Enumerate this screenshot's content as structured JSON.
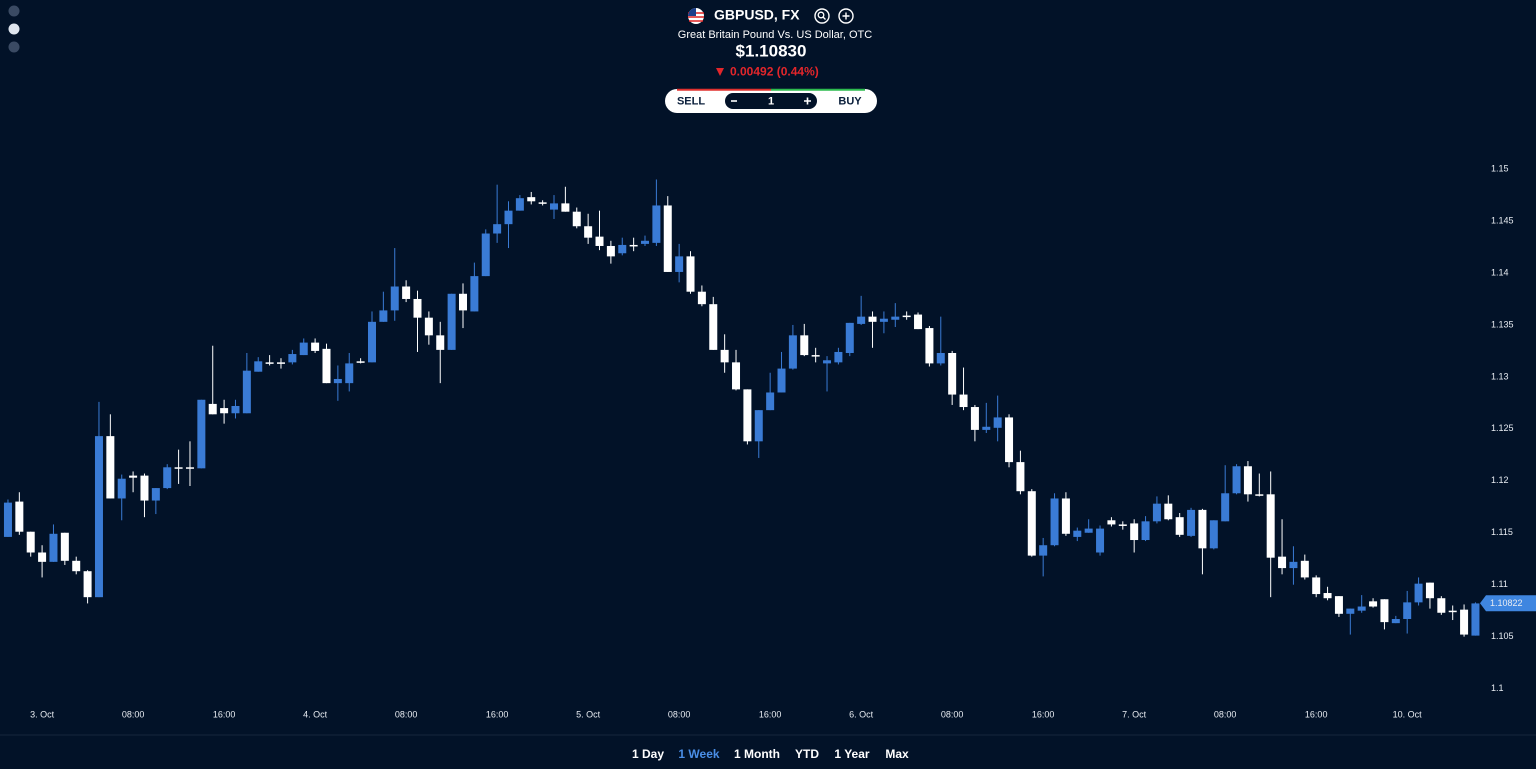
{
  "header": {
    "symbol": "GBPUSD, FX",
    "name": "Great Britain Pound Vs. US Dollar, OTC",
    "price": "$1.10830",
    "change": "0.00492 (0.44%)"
  },
  "trade": {
    "sell": "SELL",
    "quantity": 1,
    "buy": "BUY"
  },
  "ranges": [
    "1 Day",
    "1 Week",
    "1 Month",
    "YTD",
    "1 Year",
    "Max"
  ],
  "active_range": 1,
  "chart_data": {
    "type": "candlestick",
    "up_color": "#3a7bd5",
    "down_color": "#ffffff",
    "xlim": [
      -0.7,
      129.4
    ],
    "xticks": [
      {
        "value": 3,
        "label": "3. Oct"
      },
      {
        "value": 11,
        "label": "08:00"
      },
      {
        "value": 19,
        "label": "16:00"
      },
      {
        "value": 27,
        "label": "4. Oct"
      },
      {
        "value": 35,
        "label": "08:00"
      },
      {
        "value": 43,
        "label": "16:00"
      },
      {
        "value": 51,
        "label": "5. Oct"
      },
      {
        "value": 59,
        "label": "08:00"
      },
      {
        "value": 67,
        "label": "16:00"
      },
      {
        "value": 75,
        "label": "6. Oct"
      },
      {
        "value": 83,
        "label": "08:00"
      },
      {
        "value": 91,
        "label": "16:00"
      },
      {
        "value": 99,
        "label": "7. Oct"
      },
      {
        "value": 107,
        "label": "08:00"
      },
      {
        "value": 115,
        "label": "16:00"
      },
      {
        "value": 123,
        "label": "10. Oct"
      }
    ],
    "ylim": [
      1.099,
      1.1528
    ],
    "yticks": [
      1.1,
      1.105,
      1.11,
      1.115,
      1.12,
      1.125,
      1.13,
      1.135,
      1.14,
      1.145,
      1.15
    ],
    "last_price": 1.10822,
    "open": [
      1.1146,
      1.118,
      1.1151,
      1.1131,
      1.1122,
      1.115,
      1.1123,
      1.1113,
      1.1088,
      1.1243,
      1.1183,
      1.1205,
      1.1205,
      1.1181,
      1.1193,
      1.1213,
      1.1213,
      1.1212,
      1.1274,
      1.127,
      1.1265,
      1.1265,
      1.1305,
      1.1314,
      1.1314,
      1.1314,
      1.1321,
      1.1333,
      1.1327,
      1.1294,
      1.1294,
      1.1315,
      1.1314,
      1.1353,
      1.1364,
      1.1387,
      1.1375,
      1.1357,
      1.134,
      1.1326,
      1.138,
      1.1363,
      1.1397,
      1.1438,
      1.1447,
      1.146,
      1.1473,
      1.1468,
      1.1461,
      1.1467,
      1.1459,
      1.1445,
      1.1435,
      1.1426,
      1.1419,
      1.1427,
      1.1428,
      1.1429,
      1.1465,
      1.1401,
      1.1416,
      1.1382,
      1.137,
      1.1326,
      1.1314,
      1.1288,
      1.1238,
      1.1268,
      1.1285,
      1.1308,
      1.134,
      1.1321,
      1.1313,
      1.1314,
      1.1323,
      1.1351,
      1.1358,
      1.1353,
      1.1355,
      1.1359,
      1.136,
      1.1347,
      1.1313,
      1.1323,
      1.1283,
      1.1271,
      1.1249,
      1.1251,
      1.1261,
      1.1218,
      1.119,
      1.1128,
      1.1138,
      1.1183,
      1.1146,
      1.115,
      1.1131,
      1.1162,
      1.1158,
      1.1159,
      1.1143,
      1.1161,
      1.1178,
      1.1165,
      1.1147,
      1.1172,
      1.1135,
      1.1161,
      1.1188,
      1.1214,
      1.1187,
      1.1187,
      1.1127,
      1.1116,
      1.1123,
      1.1107,
      1.1092,
      1.1089,
      1.1072,
      1.1075,
      1.1084,
      1.1086,
      1.1063,
      1.1067,
      1.1083,
      1.1102,
      1.1087,
      1.1075,
      1.1076,
      1.1051
    ],
    "high": [
      1.1182,
      1.1189,
      1.1151,
      1.1138,
      1.1158,
      1.115,
      1.1127,
      1.1114,
      1.1276,
      1.1264,
      1.1206,
      1.1209,
      1.1207,
      1.1193,
      1.1216,
      1.123,
      1.1238,
      1.1278,
      1.133,
      1.1278,
      1.1278,
      1.1323,
      1.1319,
      1.1321,
      1.1318,
      1.1326,
      1.1337,
      1.1337,
      1.1332,
      1.1311,
      1.1323,
      1.1318,
      1.1363,
      1.1382,
      1.1424,
      1.1393,
      1.1383,
      1.1363,
      1.1353,
      1.138,
      1.139,
      1.141,
      1.1442,
      1.1485,
      1.1469,
      1.1475,
      1.1478,
      1.147,
      1.1475,
      1.1483,
      1.1463,
      1.1457,
      1.146,
      1.1431,
      1.1434,
      1.1434,
      1.1436,
      1.149,
      1.1474,
      1.1428,
      1.1421,
      1.1388,
      1.1377,
      1.1341,
      1.1326,
      1.1288,
      1.1268,
      1.1304,
      1.1324,
      1.135,
      1.1351,
      1.1328,
      1.132,
      1.1328,
      1.1352,
      1.1378,
      1.1363,
      1.1363,
      1.1371,
      1.1363,
      1.1362,
      1.1349,
      1.1358,
      1.1325,
      1.1309,
      1.1273,
      1.1275,
      1.1282,
      1.1264,
      1.1229,
      1.1192,
      1.1145,
      1.1188,
      1.1189,
      1.1155,
      1.1163,
      1.1157,
      1.1165,
      1.1161,
      1.1163,
      1.1166,
      1.1185,
      1.1186,
      1.1169,
      1.1174,
      1.1173,
      1.1162,
      1.1215,
      1.1216,
      1.1219,
      1.1207,
      1.1209,
      1.1163,
      1.1137,
      1.1129,
      1.1109,
      1.1098,
      1.1089,
      1.1077,
      1.109,
      1.1087,
      1.1086,
      1.107,
      1.1094,
      1.1107,
      1.1102,
      1.1089,
      1.108,
      1.1081,
      1.1083
    ],
    "low": [
      1.1146,
      1.1148,
      1.1127,
      1.1107,
      1.1122,
      1.1119,
      1.111,
      1.1082,
      1.1088,
      1.1183,
      1.1162,
      1.1189,
      1.1165,
      1.1168,
      1.1192,
      1.1197,
      1.1195,
      1.1212,
      1.1264,
      1.1255,
      1.126,
      1.1265,
      1.1305,
      1.1311,
      1.1308,
      1.1312,
      1.1321,
      1.1323,
      1.1294,
      1.1277,
      1.1286,
      1.1313,
      1.1314,
      1.1353,
      1.1354,
      1.1372,
      1.1324,
      1.1331,
      1.1294,
      1.1326,
      1.1347,
      1.1363,
      1.1397,
      1.1429,
      1.1424,
      1.146,
      1.1466,
      1.1465,
      1.1452,
      1.1459,
      1.1443,
      1.1428,
      1.1422,
      1.1409,
      1.1417,
      1.1421,
      1.1426,
      1.1426,
      1.1401,
      1.1391,
      1.138,
      1.1368,
      1.1326,
      1.1304,
      1.1287,
      1.1235,
      1.1222,
      1.1268,
      1.1285,
      1.1307,
      1.132,
      1.1314,
      1.1286,
      1.1312,
      1.132,
      1.135,
      1.1328,
      1.1342,
      1.1348,
      1.1355,
      1.1346,
      1.131,
      1.1311,
      1.1273,
      1.1268,
      1.1238,
      1.1246,
      1.1238,
      1.1213,
      1.1187,
      1.1127,
      1.1108,
      1.1137,
      1.1147,
      1.1142,
      1.115,
      1.1128,
      1.1156,
      1.1153,
      1.1131,
      1.1142,
      1.1159,
      1.1162,
      1.1146,
      1.1146,
      1.111,
      1.1134,
      1.1161,
      1.1187,
      1.118,
      1.1185,
      1.1088,
      1.111,
      1.11,
      1.1105,
      1.1088,
      1.1085,
      1.1069,
      1.1052,
      1.1073,
      1.1078,
      1.1057,
      1.1063,
      1.1053,
      1.108,
      1.1077,
      1.1071,
      1.1066,
      1.105,
      1.1051
    ],
    "close": [
      1.1179,
      1.1151,
      1.1131,
      1.1122,
      1.1149,
      1.1123,
      1.1113,
      1.1088,
      1.1243,
      1.1183,
      1.1202,
      1.1203,
      1.1181,
      1.1193,
      1.1213,
      1.1212,
      1.1212,
      1.1278,
      1.1264,
      1.1265,
      1.1272,
      1.1306,
      1.1315,
      1.1313,
      1.1313,
      1.1322,
      1.1333,
      1.1325,
      1.1294,
      1.1298,
      1.1313,
      1.1314,
      1.1353,
      1.1364,
      1.1387,
      1.1375,
      1.1357,
      1.134,
      1.1326,
      1.138,
      1.1364,
      1.1397,
      1.1438,
      1.1447,
      1.146,
      1.1472,
      1.1469,
      1.1467,
      1.1467,
      1.1459,
      1.1445,
      1.1434,
      1.1426,
      1.1416,
      1.1427,
      1.1426,
      1.1431,
      1.1465,
      1.1401,
      1.1416,
      1.1382,
      1.137,
      1.1326,
      1.1314,
      1.1288,
      1.1238,
      1.1268,
      1.1285,
      1.1308,
      1.134,
      1.1321,
      1.132,
      1.1316,
      1.1324,
      1.1352,
      1.1358,
      1.1353,
      1.1356,
      1.1358,
      1.1358,
      1.1346,
      1.1313,
      1.1323,
      1.1283,
      1.1271,
      1.1249,
      1.1252,
      1.1261,
      1.1218,
      1.119,
      1.1128,
      1.1138,
      1.1183,
      1.1149,
      1.1152,
      1.1154,
      1.1154,
      1.1158,
      1.1157,
      1.1143,
      1.1161,
      1.1178,
      1.1163,
      1.1148,
      1.1172,
      1.1135,
      1.1162,
      1.1188,
      1.1214,
      1.1187,
      1.1186,
      1.1126,
      1.1116,
      1.1122,
      1.1107,
      1.1091,
      1.1087,
      1.1072,
      1.1077,
      1.1079,
      1.1079,
      1.1064,
      1.1067,
      1.1083,
      1.1101,
      1.1087,
      1.1073,
      1.1074,
      1.1052,
      1.1082
    ]
  }
}
